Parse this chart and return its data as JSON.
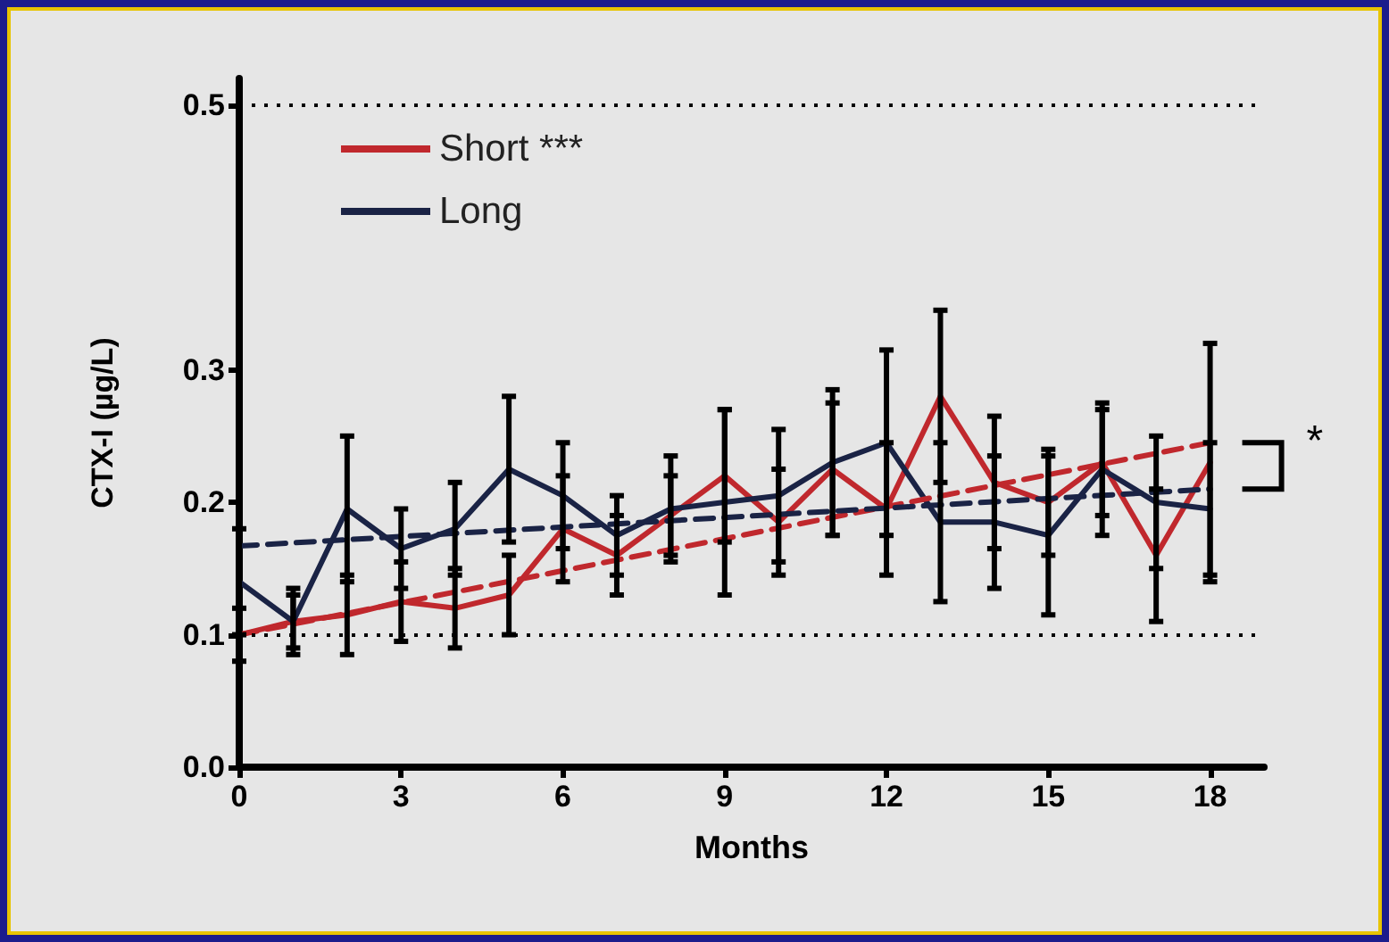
{
  "chart_data": {
    "type": "line",
    "xlabel": "Months",
    "ylabel": "CTX-I (µg/L)",
    "x": [
      0,
      1,
      2,
      3,
      4,
      5,
      6,
      7,
      8,
      9,
      10,
      11,
      12,
      13,
      14,
      15,
      16,
      17,
      18
    ],
    "xlim": [
      0,
      19
    ],
    "xticks": [
      0,
      3,
      6,
      9,
      12,
      15,
      18
    ],
    "ylim": [
      0,
      0.52
    ],
    "yticks": [
      {
        "value": 0,
        "label": "0.0"
      },
      0.1,
      0.2,
      0.3,
      0.5
    ],
    "series": [
      {
        "name": "Short ***",
        "color": "#c0282d",
        "values": [
          0.1,
          0.11,
          0.115,
          0.125,
          0.12,
          0.13,
          0.18,
          0.16,
          0.19,
          0.22,
          0.185,
          0.225,
          0.195,
          0.28,
          0.215,
          0.2,
          0.23,
          0.16,
          0.23
        ],
        "errors": [
          0.02,
          0.02,
          0.03,
          0.03,
          0.03,
          0.03,
          0.04,
          0.03,
          0.03,
          0.05,
          0.04,
          0.05,
          0.05,
          0.065,
          0.05,
          0.04,
          0.04,
          0.05,
          0.09
        ]
      },
      {
        "name": "Long",
        "color": "#1a2345",
        "values": [
          0.14,
          0.11,
          0.195,
          0.165,
          0.18,
          0.225,
          0.205,
          0.175,
          0.195,
          0.2,
          0.205,
          0.23,
          0.245,
          0.185,
          0.185,
          0.175,
          0.225,
          0.2,
          0.195
        ],
        "errors": [
          0.04,
          0.025,
          0.055,
          0.03,
          0.035,
          0.055,
          0.04,
          0.03,
          0.04,
          0.07,
          0.05,
          0.055,
          0.07,
          0.06,
          0.05,
          0.06,
          0.05,
          0.05,
          0.05
        ]
      },
      {
        "type": "line",
        "color": "#c0282d",
        "line_style": "dashed",
        "values": [
          0.1,
          null,
          null,
          null,
          null,
          null,
          null,
          null,
          null,
          null,
          null,
          null,
          null,
          null,
          null,
          null,
          null,
          null,
          0.245
        ]
      },
      {
        "type": "line",
        "color": "#1a2345",
        "line_style": "dashed",
        "values": [
          0.167,
          null,
          null,
          null,
          null,
          null,
          null,
          null,
          null,
          null,
          null,
          null,
          null,
          null,
          null,
          null,
          null,
          null,
          0.21
        ]
      }
    ],
    "ref_lines": [
      {
        "axis": "y",
        "value": 0.1,
        "color": "#000000",
        "line_style": "dotted"
      },
      {
        "axis": "y",
        "value": 0.5,
        "color": "#000000",
        "line_style": "dotted"
      }
    ],
    "annotations": [
      "*"
    ],
    "legend": "top left",
    "marker": "none",
    "grid": false
  }
}
